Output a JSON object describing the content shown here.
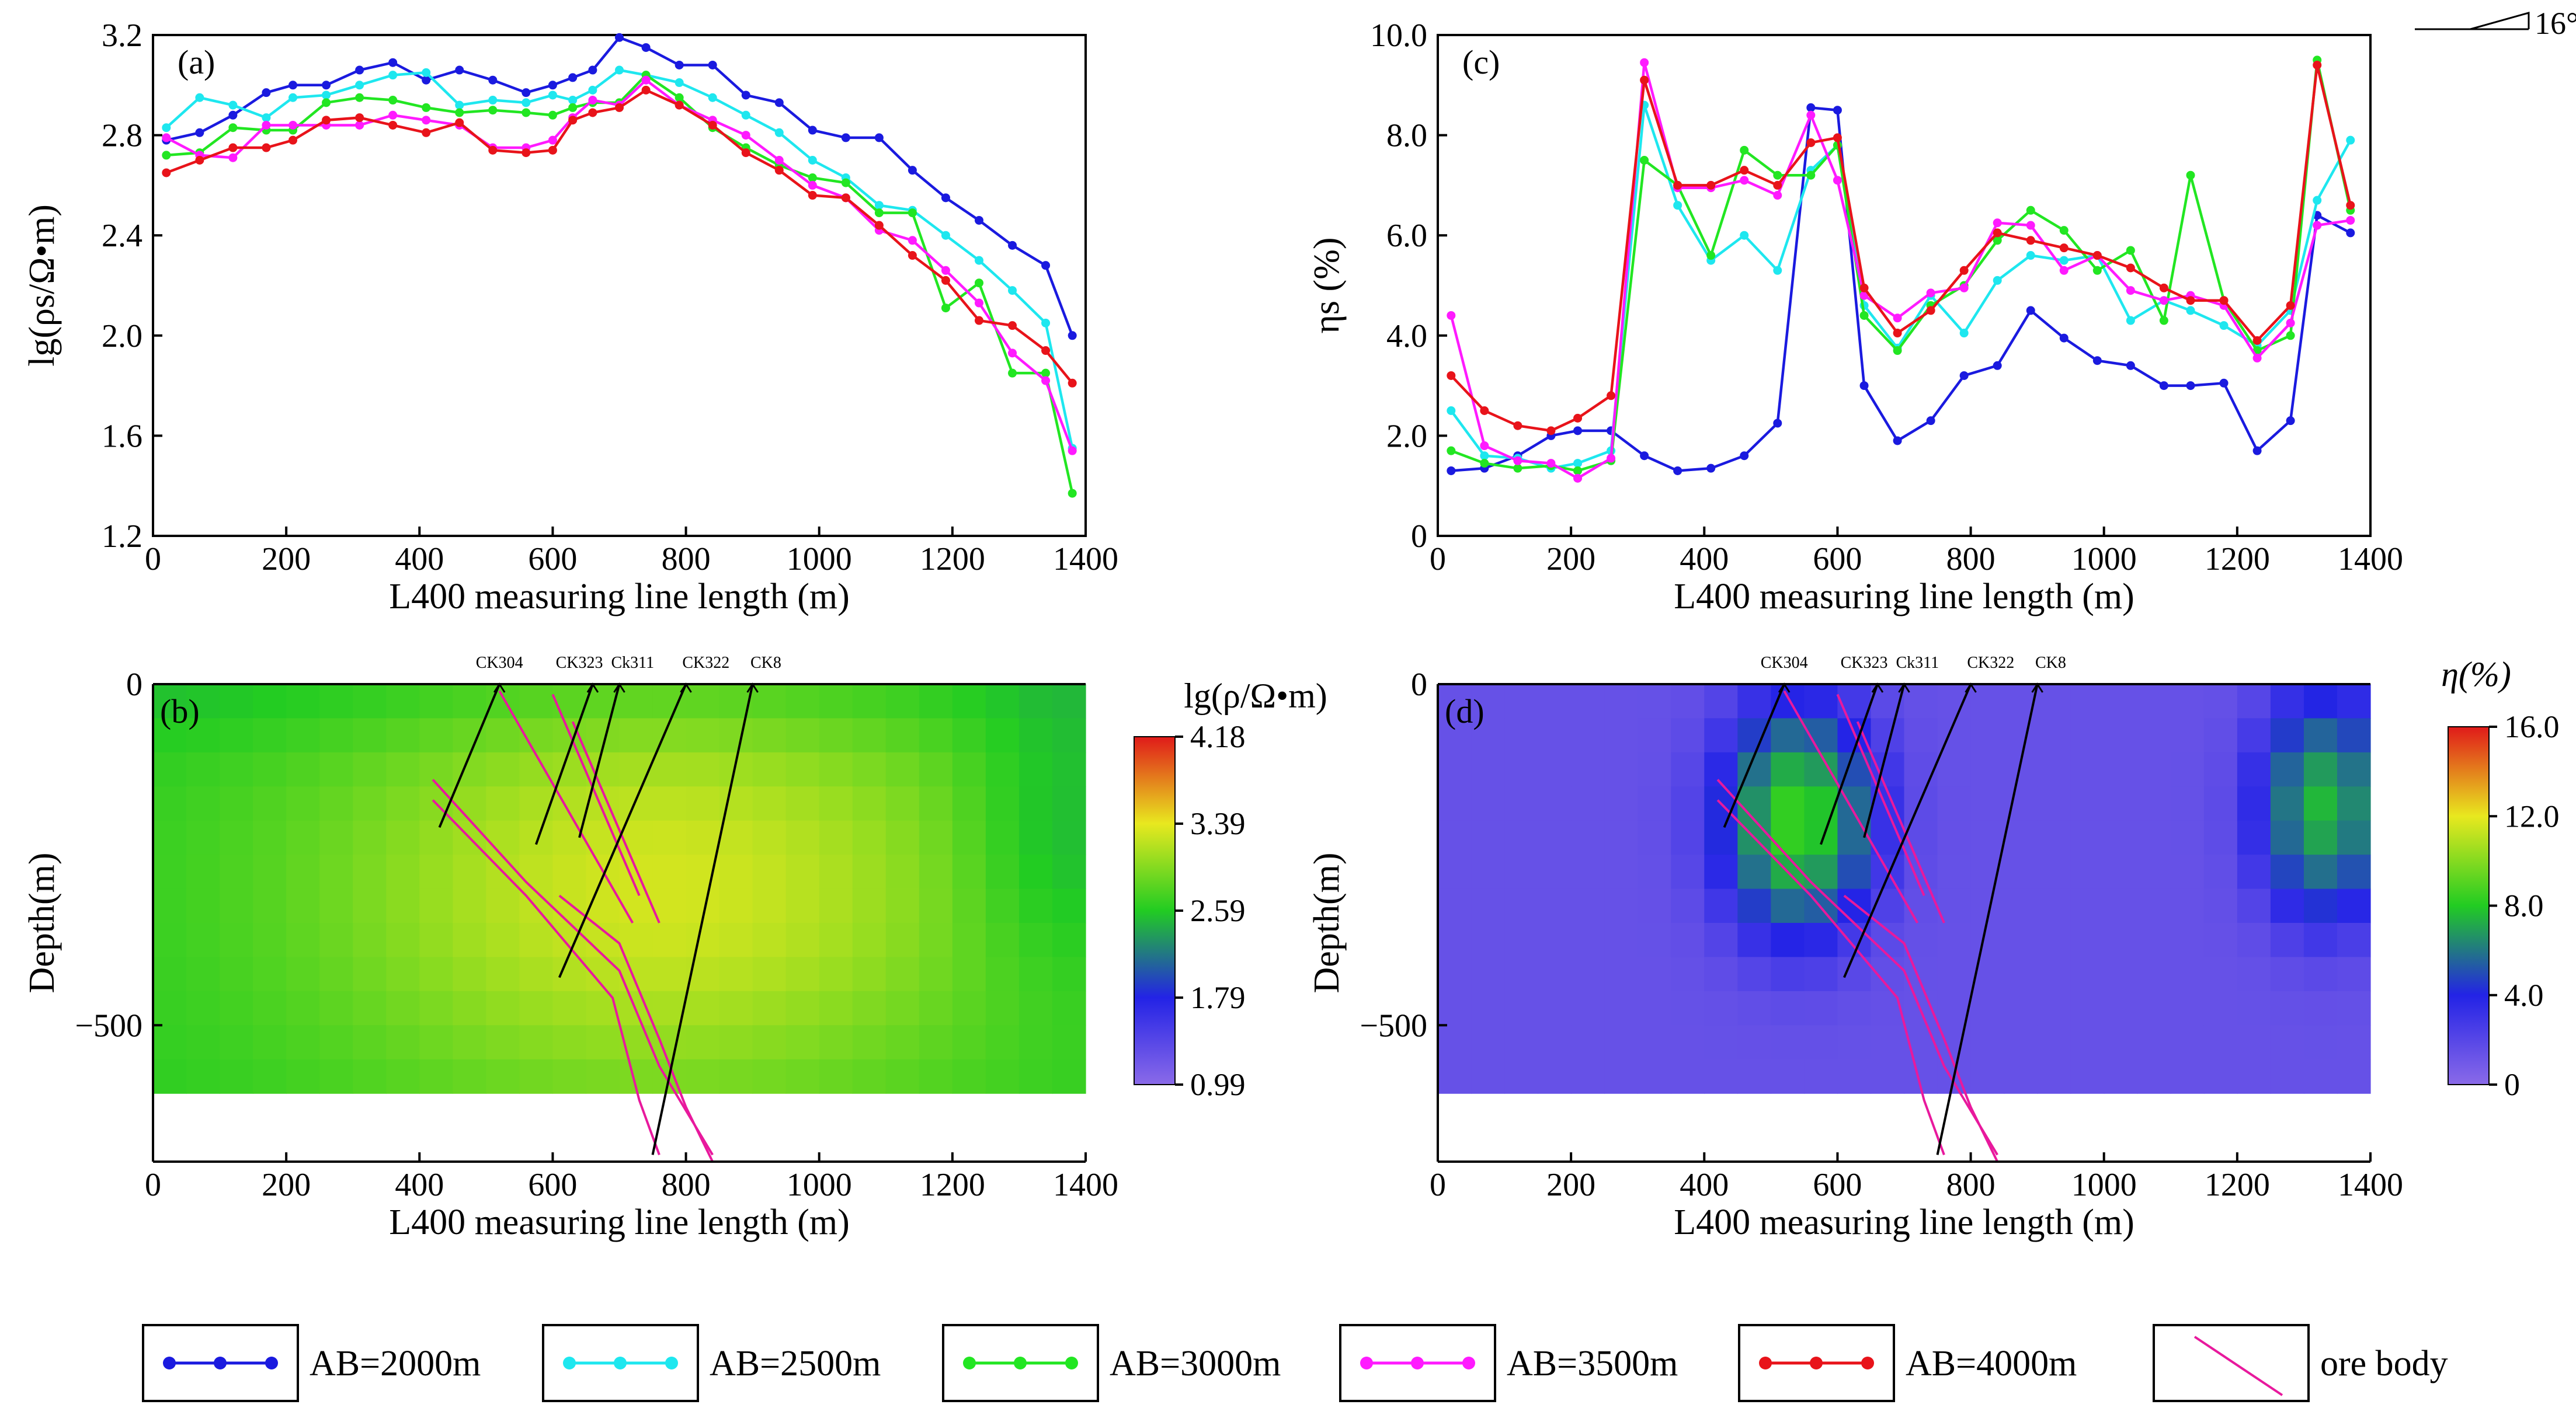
{
  "colors": {
    "ab2000": "#1a1adf",
    "ab2500": "#1ee7ef",
    "ab3000": "#22e622",
    "ab3500": "#ff1aff",
    "ab4000": "#e8131a",
    "ore": "#e8199d",
    "well": "#000000"
  },
  "north_arrow": {
    "label": "16°"
  },
  "legend": {
    "items": [
      {
        "label": "AB=2000m",
        "color": "#1a1adf"
      },
      {
        "label": "AB=2500m",
        "color": "#1ee7ef"
      },
      {
        "label": "AB=3000m",
        "color": "#22e622"
      },
      {
        "label": "AB=3500m",
        "color": "#ff1aff"
      },
      {
        "label": "AB=4000m",
        "color": "#e8131a"
      },
      {
        "label": "ore body",
        "color": "#e8199d"
      }
    ]
  },
  "chart_data": [
    {
      "id": "a",
      "type": "line",
      "panel_label": "(a)",
      "title": "",
      "xlabel": "L400 measuring line length (m)",
      "ylabel": "lg(ρs/Ω•m)",
      "xlim": [
        0,
        1400
      ],
      "ylim": [
        1.2,
        3.2
      ],
      "xticks": [
        "0",
        "200",
        "400",
        "600",
        "800",
        "1000",
        "1200",
        "1400"
      ],
      "yticks": [
        "1.2",
        "1.6",
        "2.0",
        "2.4",
        "2.8",
        "3.2"
      ],
      "x": [
        20,
        70,
        120,
        170,
        210,
        260,
        310,
        360,
        410,
        460,
        510,
        560,
        600,
        630,
        660,
        700,
        740,
        790,
        840,
        890,
        940,
        990,
        1040,
        1090,
        1140,
        1190,
        1240,
        1290,
        1340,
        1380
      ],
      "series": [
        {
          "name": "AB=2000m",
          "values": [
            2.78,
            2.81,
            2.88,
            2.97,
            3.0,
            3.0,
            3.06,
            3.09,
            3.02,
            3.06,
            3.02,
            2.97,
            3.0,
            3.03,
            3.06,
            3.19,
            3.15,
            3.08,
            3.08,
            2.96,
            2.93,
            2.82,
            2.79,
            2.79,
            2.66,
            2.55,
            2.46,
            2.36,
            2.28,
            2.0
          ]
        },
        {
          "name": "AB=2500m",
          "values": [
            2.83,
            2.95,
            2.92,
            2.87,
            2.95,
            2.96,
            3.0,
            3.04,
            3.05,
            2.92,
            2.94,
            2.93,
            2.96,
            2.94,
            2.98,
            3.06,
            3.04,
            3.01,
            2.95,
            2.88,
            2.81,
            2.7,
            2.63,
            2.52,
            2.5,
            2.4,
            2.3,
            2.18,
            2.05,
            1.55
          ]
        },
        {
          "name": "AB=3000m",
          "values": [
            2.72,
            2.73,
            2.83,
            2.82,
            2.82,
            2.93,
            2.95,
            2.94,
            2.91,
            2.89,
            2.9,
            2.89,
            2.88,
            2.91,
            2.93,
            2.93,
            3.04,
            2.95,
            2.83,
            2.75,
            2.68,
            2.63,
            2.61,
            2.49,
            2.49,
            2.11,
            2.21,
            1.85,
            1.85,
            1.37
          ]
        },
        {
          "name": "AB=3500m",
          "values": [
            2.79,
            2.72,
            2.71,
            2.84,
            2.84,
            2.84,
            2.84,
            2.88,
            2.86,
            2.84,
            2.75,
            2.75,
            2.78,
            2.87,
            2.94,
            2.92,
            3.02,
            2.92,
            2.86,
            2.8,
            2.7,
            2.6,
            2.55,
            2.42,
            2.38,
            2.26,
            2.13,
            1.93,
            1.82,
            1.54
          ]
        },
        {
          "name": "AB=4000m",
          "values": [
            2.65,
            2.7,
            2.75,
            2.75,
            2.78,
            2.86,
            2.87,
            2.84,
            2.81,
            2.85,
            2.74,
            2.73,
            2.74,
            2.86,
            2.89,
            2.91,
            2.98,
            2.92,
            2.84,
            2.73,
            2.66,
            2.56,
            2.55,
            2.44,
            2.32,
            2.22,
            2.06,
            2.04,
            1.94,
            1.81
          ]
        }
      ]
    },
    {
      "id": "c",
      "type": "line",
      "panel_label": "(c)",
      "title": "",
      "xlabel": "L400 measuring line length (m)",
      "ylabel": "ηs (%)",
      "xlim": [
        0,
        1400
      ],
      "ylim": [
        0,
        10
      ],
      "xticks": [
        "0",
        "200",
        "400",
        "600",
        "800",
        "1000",
        "1200",
        "1400"
      ],
      "yticks": [
        "0",
        "2.0",
        "4.0",
        "6.0",
        "8.0",
        "10.0"
      ],
      "x": [
        20,
        70,
        120,
        170,
        210,
        260,
        310,
        360,
        410,
        460,
        510,
        560,
        600,
        640,
        690,
        740,
        790,
        840,
        890,
        940,
        990,
        1040,
        1090,
        1130,
        1180,
        1230,
        1280,
        1320,
        1370
      ],
      "series": [
        {
          "name": "AB=2000m",
          "values": [
            1.3,
            1.35,
            1.6,
            2.0,
            2.1,
            2.1,
            1.6,
            1.3,
            1.35,
            1.6,
            2.25,
            8.55,
            8.5,
            3.0,
            1.9,
            2.3,
            3.2,
            3.4,
            4.5,
            3.95,
            3.5,
            3.4,
            3.0,
            3.0,
            3.05,
            1.7,
            2.3,
            6.4,
            6.05
          ]
        },
        {
          "name": "AB=2500m",
          "values": [
            2.5,
            1.6,
            1.55,
            1.35,
            1.45,
            1.7,
            8.6,
            6.6,
            5.5,
            6.0,
            5.3,
            7.3,
            7.8,
            4.6,
            3.75,
            4.8,
            4.05,
            5.1,
            5.6,
            5.5,
            5.6,
            4.3,
            4.7,
            4.5,
            4.2,
            3.8,
            4.5,
            6.7,
            7.9
          ]
        },
        {
          "name": "AB=3000m",
          "values": [
            1.7,
            1.45,
            1.35,
            1.4,
            1.3,
            1.5,
            7.5,
            7.0,
            5.6,
            7.7,
            7.2,
            7.2,
            7.8,
            4.4,
            3.7,
            4.6,
            5.0,
            5.9,
            6.5,
            6.1,
            5.3,
            5.7,
            4.3,
            7.2,
            4.7,
            3.7,
            4.0,
            9.5,
            6.5
          ]
        },
        {
          "name": "AB=3500m",
          "values": [
            4.4,
            1.8,
            1.5,
            1.45,
            1.15,
            1.55,
            9.45,
            6.95,
            6.95,
            7.1,
            6.8,
            8.4,
            7.1,
            4.8,
            4.35,
            4.85,
            4.95,
            6.25,
            6.2,
            5.3,
            5.6,
            4.9,
            4.7,
            4.8,
            4.6,
            3.55,
            4.25,
            6.2,
            6.3
          ]
        },
        {
          "name": "AB=4000m",
          "values": [
            3.2,
            2.5,
            2.2,
            2.1,
            2.35,
            2.8,
            9.1,
            7.0,
            7.0,
            7.3,
            7.0,
            7.85,
            7.95,
            4.95,
            4.05,
            4.5,
            5.3,
            6.05,
            5.9,
            5.75,
            5.6,
            5.35,
            4.95,
            4.7,
            4.7,
            3.9,
            4.6,
            9.4,
            6.6
          ]
        }
      ]
    },
    {
      "id": "b",
      "type": "heatmap",
      "panel_label": "(b)",
      "title": "",
      "xlabel": "L400 measuring line length (m)",
      "ylabel": "Depth(m)",
      "xlim": [
        0,
        1400
      ],
      "ylim": [
        -700,
        0
      ],
      "xticks": [
        "0",
        "200",
        "400",
        "600",
        "800",
        "1000",
        "1200",
        "1400"
      ],
      "yticks": [
        "0",
        "−500"
      ],
      "colorbar": {
        "title": "lg(ρ/Ω•m)",
        "ticks": [
          "4.18",
          "3.39",
          "2.59",
          "1.79",
          "0.99"
        ],
        "range": [
          0.99,
          4.18
        ],
        "stops": [
          "#8a6ae8",
          "#2323e6",
          "#22cc22",
          "#e8e81f",
          "#e01a1a"
        ]
      },
      "grid": {
        "x_start": 0,
        "x_end": 1400,
        "x_step": 50,
        "depth_start": 0,
        "depth_end": 570,
        "depth_step": 50,
        "peak_x": 760,
        "peak_depth": 300,
        "peak_value": 3.3,
        "base_value": 2.6,
        "low_x": 1350,
        "low_value": 2.35
      },
      "wells": [
        {
          "name": "CK304",
          "points": [
            [
              520,
              0
            ],
            [
              430,
              -210
            ]
          ]
        },
        {
          "name": "CK323",
          "points": [
            [
              660,
              0
            ],
            [
              575,
              -235
            ]
          ]
        },
        {
          "name": "Ck311",
          "points": [
            [
              700,
              0
            ],
            [
              640,
              -225
            ]
          ]
        },
        {
          "name": "CK322",
          "points": [
            [
              800,
              0
            ],
            [
              610,
              -430
            ]
          ]
        },
        {
          "name": "CK8",
          "points": [
            [
              900,
              0
            ],
            [
              750,
              -690
            ]
          ]
        }
      ],
      "well_label_x": [
        520,
        640,
        720,
        830,
        920
      ],
      "ore_bodies": [
        {
          "points": [
            [
              520,
              -10
            ],
            [
              720,
              -350
            ]
          ]
        },
        {
          "points": [
            [
              600,
              -15
            ],
            [
              730,
              -310
            ]
          ]
        },
        {
          "points": [
            [
              630,
              -55
            ],
            [
              760,
              -350
            ]
          ]
        },
        {
          "points": [
            [
              420,
              -140
            ],
            [
              560,
              -290
            ],
            [
              700,
              -420
            ],
            [
              760,
              -560
            ],
            [
              840,
              -690
            ]
          ]
        },
        {
          "points": [
            [
              420,
              -170
            ],
            [
              560,
              -310
            ],
            [
              690,
              -460
            ],
            [
              730,
              -610
            ],
            [
              760,
              -690
            ]
          ]
        },
        {
          "points": [
            [
              610,
              -310
            ],
            [
              700,
              -380
            ],
            [
              760,
              -520
            ],
            [
              800,
              -620
            ],
            [
              840,
              -700
            ]
          ]
        }
      ]
    },
    {
      "id": "d",
      "type": "heatmap",
      "panel_label": "(d)",
      "title": "",
      "xlabel": "L400 measuring line length (m)",
      "ylabel": "Depth(m)",
      "xlim": [
        0,
        1400
      ],
      "ylim": [
        -700,
        0
      ],
      "xticks": [
        "0",
        "200",
        "400",
        "600",
        "800",
        "1000",
        "1200",
        "1400"
      ],
      "yticks": [
        "0",
        "−500"
      ],
      "colorbar": {
        "title": "η(%)",
        "ticks": [
          "16.0",
          "12.0",
          "8.0",
          "4.0",
          "0"
        ],
        "range": [
          0,
          16
        ],
        "stops": [
          "#8a6ae8",
          "#2323e6",
          "#22cc22",
          "#e8e81f",
          "#e01a1a"
        ]
      },
      "grid": {
        "x_start": 0,
        "x_end": 1400,
        "x_step": 50,
        "depth_start": 0,
        "depth_end": 570,
        "depth_step": 50,
        "anomalies": [
          {
            "x": 540,
            "depth": 200,
            "value": 8.6,
            "rx": 130,
            "ry": 190
          },
          {
            "x": 1330,
            "depth": 180,
            "value": 7.5,
            "rx": 110,
            "ry": 180
          }
        ],
        "base_value": 1.4
      },
      "wells": [
        {
          "name": "CK304",
          "points": [
            [
              520,
              0
            ],
            [
              430,
              -210
            ]
          ]
        },
        {
          "name": "CK323",
          "points": [
            [
              660,
              0
            ],
            [
              575,
              -235
            ]
          ]
        },
        {
          "name": "Ck311",
          "points": [
            [
              700,
              0
            ],
            [
              640,
              -225
            ]
          ]
        },
        {
          "name": "CK322",
          "points": [
            [
              800,
              0
            ],
            [
              610,
              -430
            ]
          ]
        },
        {
          "name": "CK8",
          "points": [
            [
              900,
              0
            ],
            [
              750,
              -690
            ]
          ]
        }
      ],
      "well_label_x": [
        520,
        640,
        720,
        830,
        920
      ],
      "ore_bodies": [
        {
          "points": [
            [
              520,
              -10
            ],
            [
              720,
              -350
            ]
          ]
        },
        {
          "points": [
            [
              600,
              -15
            ],
            [
              730,
              -310
            ]
          ]
        },
        {
          "points": [
            [
              630,
              -55
            ],
            [
              760,
              -350
            ]
          ]
        },
        {
          "points": [
            [
              420,
              -140
            ],
            [
              560,
              -290
            ],
            [
              700,
              -420
            ],
            [
              760,
              -560
            ],
            [
              840,
              -690
            ]
          ]
        },
        {
          "points": [
            [
              420,
              -170
            ],
            [
              560,
              -310
            ],
            [
              690,
              -460
            ],
            [
              730,
              -610
            ],
            [
              760,
              -690
            ]
          ]
        },
        {
          "points": [
            [
              610,
              -310
            ],
            [
              700,
              -380
            ],
            [
              760,
              -520
            ],
            [
              800,
              -620
            ],
            [
              840,
              -700
            ]
          ]
        }
      ]
    }
  ]
}
